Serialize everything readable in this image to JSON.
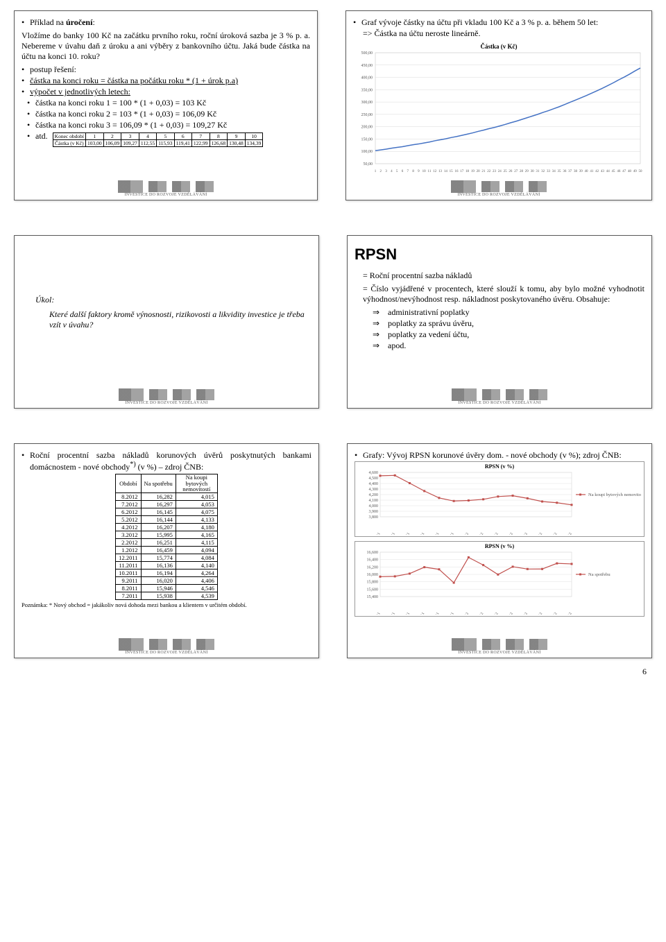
{
  "colors": {
    "border": "#5a5a5a",
    "grid": "#cccccc",
    "axis": "#666666",
    "line_blue": "#4472c4",
    "line_pink": "#c0504d",
    "text": "#000000"
  },
  "p1": {
    "t1": "Příklad na ",
    "t1b": "úročení",
    "t1c": ":",
    "para1": "Vložíme do banky 100 Kč na začátku prvního roku, roční úroková sazba je 3 % p. a. Nebereme v úvahu daň z úroku a ani výběry z bankovního účtu. Jaká bude částka na účtu na konci 10. roku?",
    "b1": "postup řešení:",
    "b2": "částka na konci roku = částka na počátku roku * (1 + úrok p.a)",
    "b3": "výpočet v jednotlivých letech:",
    "c1": "částka na konci roku 1 = 100 * (1 + 0,03) = 103 Kč",
    "c2": "částka na konci roku 2 = 103 * (1 + 0,03) = 106,09 Kč",
    "c3": "částka na konci roku 3 = 106,09 * (1 + 0,03) = 109,27 Kč",
    "c4": "atd.",
    "table": {
      "head": [
        "Konec období",
        "1",
        "2",
        "3",
        "4",
        "5",
        "6",
        "7",
        "8",
        "9",
        "10"
      ],
      "row_label": "Částka (v Kč)",
      "row": [
        "103,00",
        "106,09",
        "109,27",
        "112,55",
        "115,93",
        "119,41",
        "122,99",
        "126,68",
        "130,48",
        "134,39"
      ]
    }
  },
  "p2": {
    "t1": "Graf vývoje částky na účtu při vkladu 100 Kč a 3 % p. a. během 50 let:",
    "arrow1": "=> Částka na účtu neroste lineárně.",
    "chart": {
      "title": "Částka (v Kč)",
      "y": {
        "min": 50,
        "max": 500,
        "step": 50
      },
      "x": {
        "min": 1,
        "max": 50,
        "step": 1
      },
      "values": [
        103,
        106,
        109,
        113,
        116,
        119,
        123,
        127,
        130,
        134,
        138,
        143,
        147,
        151,
        156,
        160,
        165,
        170,
        175,
        181,
        186,
        192,
        197,
        203,
        209,
        216,
        222,
        229,
        236,
        243,
        250,
        258,
        265,
        273,
        281,
        290,
        299,
        308,
        317,
        326,
        336,
        346,
        356,
        367,
        378,
        390,
        401,
        413,
        426,
        438
      ],
      "line_color": "#4472c4",
      "bg": "#ffffff",
      "grid_color": "#d9d9d9",
      "tick_fontsize": 6
    }
  },
  "p3": {
    "heading": "Úkol:",
    "body": "Které další faktory kromě výnosnosti, rizikovosti a likvidity investice je třeba vzít v úvahu?"
  },
  "p4": {
    "title": "RPSN",
    "d1": "= Roční procentní sazba nákladů",
    "d2": "= Číslo vyjádřené v procentech, které slouží k tomu, aby bylo možné vyhodnotit výhodnost/nevýhodnost resp. nákladnost poskytovaného úvěru. Obsahuje:",
    "items": [
      "administrativní poplatky",
      "poplatky za správu úvěru,",
      "poplatky za vedení účtu,",
      "apod."
    ]
  },
  "p5": {
    "t1": "Roční procentní sazba nákladů korunových úvěrů poskytnutých bankami domácnostem - nové obchody",
    "t1_sup": "*)",
    "t1_tail": " (v %) – zdroj ČNB:",
    "table": {
      "head": [
        "Období",
        "Na spotřebu",
        "Na koupi bytových nemovitostí"
      ],
      "rows": [
        [
          "8.2012",
          "16,282",
          "4,015"
        ],
        [
          "7.2012",
          "16,297",
          "4,053"
        ],
        [
          "6.2012",
          "16,145",
          "4,075"
        ],
        [
          "5.2012",
          "16,144",
          "4,133"
        ],
        [
          "4.2012",
          "16,207",
          "4,180"
        ],
        [
          "3.2012",
          "15,995",
          "4,165"
        ],
        [
          "2.2012",
          "16,251",
          "4,115"
        ],
        [
          "1.2012",
          "16,459",
          "4,094"
        ],
        [
          "12.2011",
          "15,774",
          "4,084"
        ],
        [
          "11.2011",
          "16,136",
          "4,140"
        ],
        [
          "10.2011",
          "16,194",
          "4,264"
        ],
        [
          "9.2011",
          "16,020",
          "4,406"
        ],
        [
          "8.2011",
          "15,946",
          "4,546"
        ],
        [
          "7.2011",
          "15,938",
          "4,539"
        ]
      ]
    },
    "note": "Poznámka: * Nový obchod = jakákoliv nová dohoda mezi bankou a klientem v určitém období."
  },
  "p6": {
    "t1": "Grafy: Vývoj RPSN korunové úvěry dom. - nové obchody (v %); zdroj ČNB:",
    "chart1": {
      "title": "RPSN (v %)",
      "y": {
        "min": 3.8,
        "max": 4.6,
        "step": 0.1
      },
      "label_steps": [
        "3,800",
        "3,900",
        "4,000",
        "4,100",
        "4,200",
        "4,300",
        "4,400",
        "4,500",
        "4,600"
      ],
      "legend": "Na koupi bytových nemovitostí",
      "color": "#c0504d",
      "values": [
        4.539,
        4.546,
        4.406,
        4.264,
        4.14,
        4.084,
        4.094,
        4.115,
        4.165,
        4.18,
        4.133,
        4.075,
        4.053,
        4.015
      ],
      "x_labels": [
        "7.2011",
        "8.2011",
        "9.2011",
        "10.2011",
        "11.2011",
        "12.2011",
        "1.2012",
        "2.2012",
        "3.2012",
        "4.2012",
        "5.2012",
        "6.2012",
        "7.2012",
        "8.2012"
      ]
    },
    "chart2": {
      "title": "RPSN (v %)",
      "y": {
        "min": 15.4,
        "max": 16.6,
        "step": 0.2
      },
      "label_steps": [
        "15,400",
        "15,600",
        "15,800",
        "16,000",
        "16,200",
        "16,400",
        "16,600"
      ],
      "legend": "Na spotřebu",
      "color": "#c0504d",
      "values": [
        15.938,
        15.946,
        16.02,
        16.194,
        16.136,
        15.774,
        16.459,
        16.251,
        15.995,
        16.207,
        16.144,
        16.145,
        16.297,
        16.282
      ],
      "x_labels": [
        "7.2011",
        "8.2011",
        "9.2011",
        "10.2011",
        "11.2011",
        "12.2011",
        "1.2012",
        "2.2012",
        "3.2012",
        "4.2012",
        "5.2012",
        "6.2012",
        "7.2012",
        "8.2012"
      ]
    }
  },
  "footer_caption": "INVESTICE DO ROZVOJE VZDĚLÁVÁNÍ",
  "page_number": "6"
}
